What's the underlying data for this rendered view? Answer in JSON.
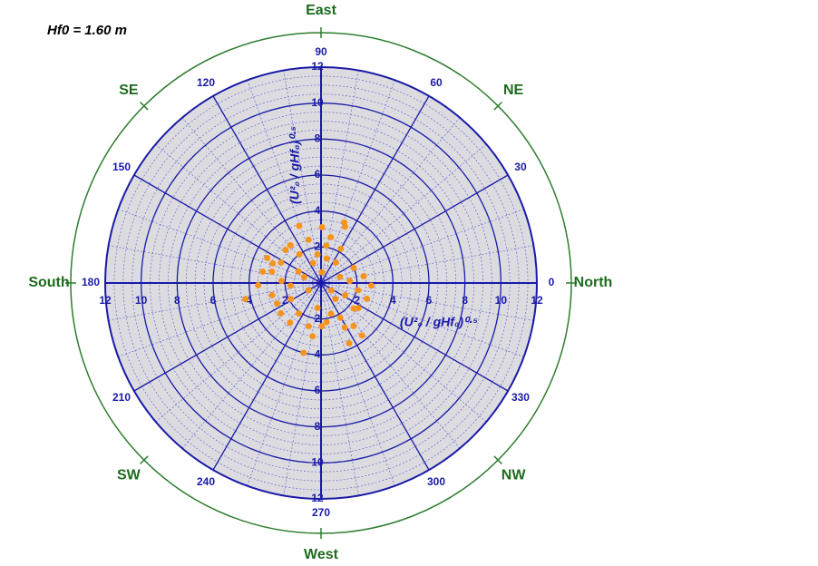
{
  "chart_data": {
    "type": "polar-scatter",
    "annotation": "Hf0 = 1.60 m",
    "radial_axis_label": "(U²₀ / gHf₀)⁰·⁵",
    "rlim": [
      0,
      12
    ],
    "rticks": [
      2,
      4,
      6,
      8,
      10,
      12
    ],
    "thetaticks": [
      0,
      30,
      60,
      90,
      120,
      150,
      180,
      210,
      240,
      270,
      300,
      330
    ],
    "directions": [
      {
        "angle": 0,
        "label": "North"
      },
      {
        "angle": 45,
        "label": "NE"
      },
      {
        "angle": 90,
        "label": "East"
      },
      {
        "angle": 135,
        "label": "SE"
      },
      {
        "angle": 180,
        "label": "South"
      },
      {
        "angle": 225,
        "label": "SW"
      },
      {
        "angle": 270,
        "label": "West"
      },
      {
        "angle": 315,
        "label": "NW"
      }
    ],
    "grid": true,
    "series": [
      {
        "color": "#f7941d",
        "theta": [
          192,
          167,
          153,
          129,
          106,
          78,
          67,
          111,
          97,
          177,
          194,
          208,
          234,
          254,
          256,
          278,
          298,
          295,
          308,
          326,
          357,
          9,
          25,
          18,
          333,
          324,
          85,
          153,
          169,
          155,
          137,
          82,
          60,
          54,
          112,
          127,
          205,
          217,
          262,
          288,
          299,
          261,
          271,
          341,
          349,
          4,
          210,
          185,
          182,
          158,
          69,
          89,
          307,
          322,
          312,
          232,
          160,
          77
        ],
        "r": [
          4.3,
          2.8,
          2.5,
          2.7,
          2.5,
          2.6,
          3.4,
          3.4,
          1.6,
          2.2,
          2.8,
          1.9,
          2.1,
          2.5,
          4.0,
          2.2,
          2.8,
          3.7,
          3.7,
          2.5,
          2.8,
          2.4,
          2.0,
          1.1,
          1.5,
          0.7,
          0.6,
          1.4,
          3.3,
          3.3,
          2.7,
          2.1,
          2.2,
          1.4,
          1.2,
          2.0,
          2.7,
          2.8,
          1.4,
          1.8,
          2.2,
          3.0,
          2.4,
          2.7,
          2.1,
          1.6,
          0.8,
          1.7,
          3.5,
          2.9,
          3.6,
          3.1,
          3.0,
          2.3,
          1.2,
          2.8,
          1.0,
          1.4
        ]
      }
    ]
  }
}
